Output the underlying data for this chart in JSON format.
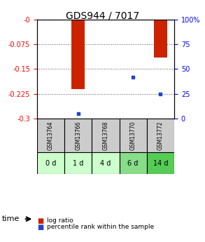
{
  "title": "GDS944 / 7017",
  "samples": [
    "GSM13764",
    "GSM13766",
    "GSM13768",
    "GSM13770",
    "GSM13772"
  ],
  "time_labels": [
    "0 d",
    "1 d",
    "4 d",
    "6 d",
    "14 d"
  ],
  "log_ratios": [
    0.0,
    -0.21,
    0.0,
    -0.002,
    -0.115
  ],
  "percentile_ranks": [
    null,
    5.0,
    null,
    42.0,
    25.0
  ],
  "ylim_left": [
    -0.3,
    0.0
  ],
  "ylim_right": [
    0,
    100
  ],
  "yticks_left": [
    0.0,
    -0.075,
    -0.15,
    -0.225,
    -0.3
  ],
  "yticks_right": [
    0,
    25,
    50,
    75,
    100
  ],
  "bar_color": "#cc2200",
  "percentile_color": "#2244cc",
  "bar_width": 0.5,
  "time_colors": [
    "#ccffcc",
    "#ccffcc",
    "#ccffcc",
    "#88dd88",
    "#55cc55"
  ],
  "sample_bg_color": "#cccccc",
  "legend_items": [
    {
      "label": "log ratio",
      "color": "#cc2200"
    },
    {
      "label": "percentile rank within the sample",
      "color": "#2244cc"
    }
  ]
}
